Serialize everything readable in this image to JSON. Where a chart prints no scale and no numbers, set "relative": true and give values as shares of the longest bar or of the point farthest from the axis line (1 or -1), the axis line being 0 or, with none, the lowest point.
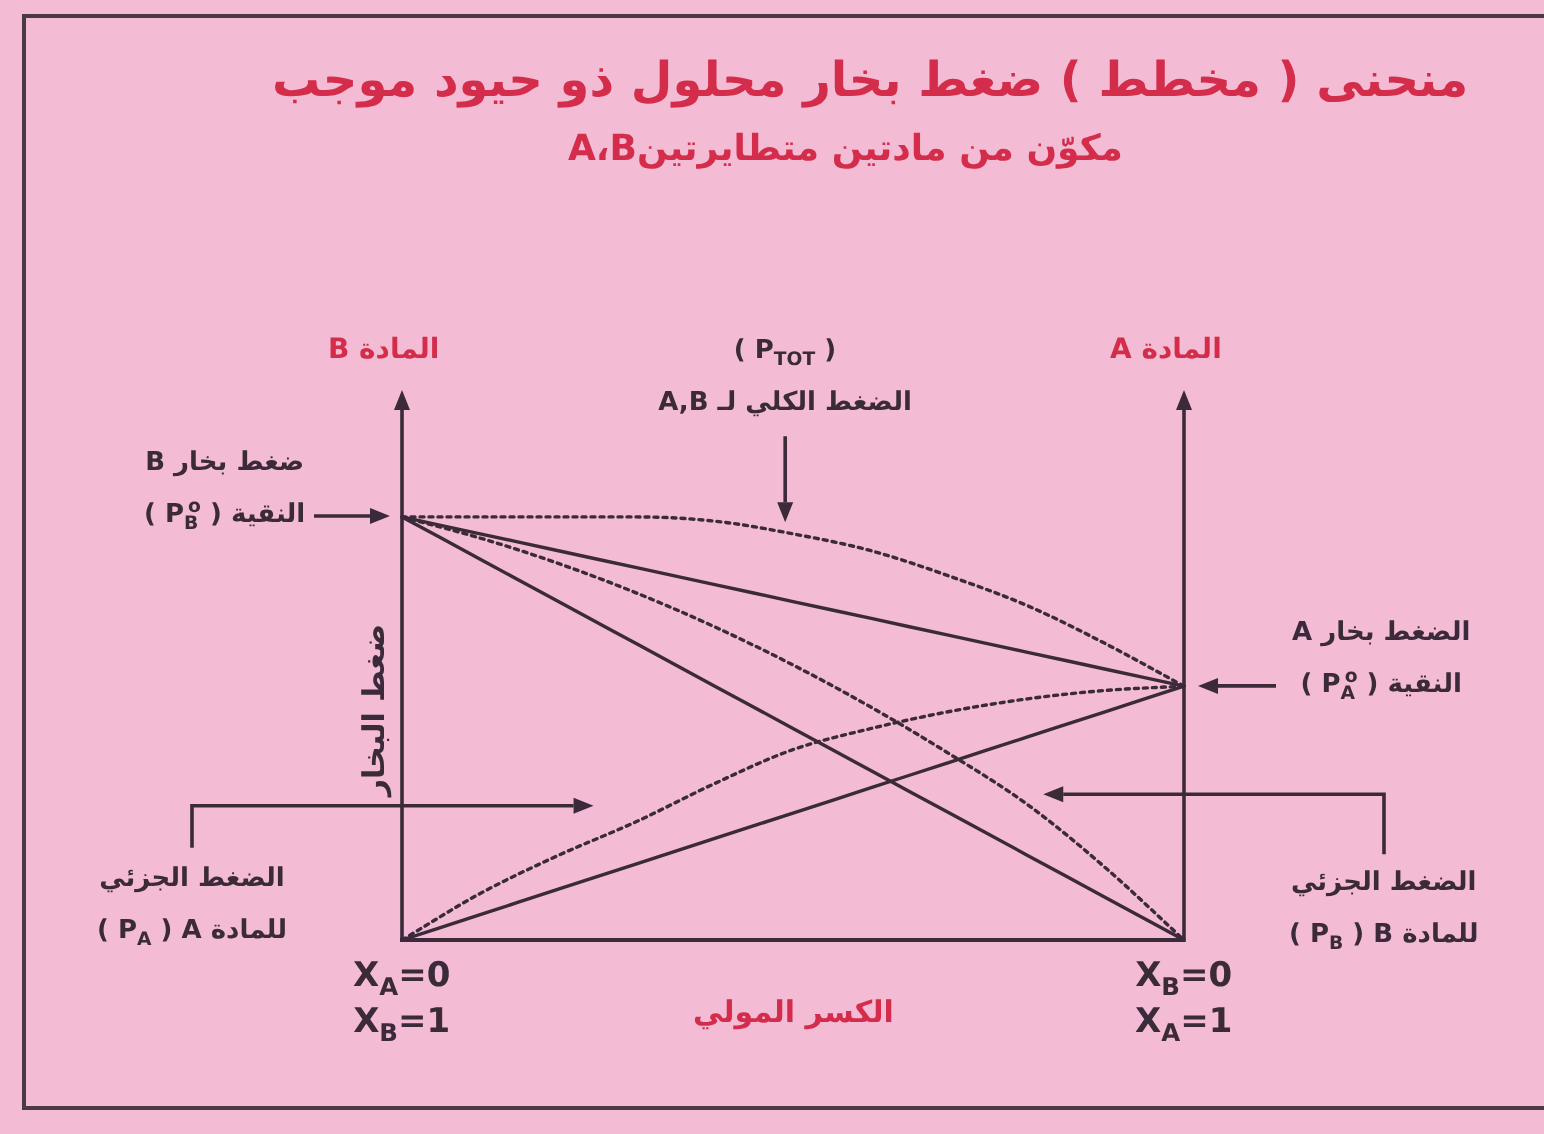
{
  "chart_data": {
    "type": "line",
    "title": "منحنى ( مخطط ) ضغط بخار محلول ذو حيود موجب",
    "subtitle": "مكوّن من مادتين متطايرتينA،B",
    "xlabel": "الكسر المولي",
    "ylabel": "ضغط البخار",
    "relative": true,
    "categories": [
      "X$_{A}$=0\nX$_{B}$=1",
      null,
      null,
      null,
      null,
      null,
      null,
      null,
      null,
      null,
      "X$_{B}$=0\nX$_{A}$=1"
    ],
    "series": [
      {
        "color": "#3b2a39",
        "line_style": "solid",
        "values": [
          1,
          0.9,
          0.8,
          0.7,
          0.6,
          0.5,
          0.4,
          0.3,
          0.2,
          0.1,
          0
        ]
      },
      {
        "color": "#3b2a39",
        "line_style": "solid",
        "values": [
          0,
          0.06,
          0.12,
          0.18,
          0.24,
          0.3,
          0.36,
          0.42,
          0.48,
          0.54,
          0.6
        ]
      },
      {
        "color": "#3b2a39",
        "line_style": "solid",
        "values": [
          1,
          0.96,
          0.92,
          0.88,
          0.84,
          0.8,
          0.76,
          0.72,
          0.68,
          0.64,
          0.6
        ]
      },
      {
        "color": "#3b2a39",
        "line_style": "dotted",
        "values": [
          1,
          1,
          1,
          1,
          0.99,
          0.96,
          0.92,
          0.86,
          0.79,
          0.7,
          0.6
        ]
      },
      {
        "color": "#3b2a39",
        "line_style": "dotted",
        "values": [
          1,
          0.95,
          0.89,
          0.82,
          0.74,
          0.65,
          0.55,
          0.44,
          0.32,
          0.17,
          0
        ]
      },
      {
        "color": "#3b2a39",
        "line_style": "dotted",
        "values": [
          0,
          0.11,
          0.2,
          0.28,
          0.37,
          0.45,
          0.5,
          0.54,
          0.57,
          0.59,
          0.6
        ]
      }
    ],
    "annotations": [
      "ضغط بخار B\nالنقية ( P$_{B}$$^{o}$ )",
      "الضغط بخار A\nالنقية ( P$_{A}$$^{o}$ )",
      "( P$_{TOT}$ )\nالضغط الكلي لـ A,B",
      "الضغط الجزئي\nللمادة A ( P$_{A}$ )",
      "الضغط الجزئي\nللمادة B ( P$_{B}$ )",
      "المادة B",
      "المادة A"
    ]
  }
}
